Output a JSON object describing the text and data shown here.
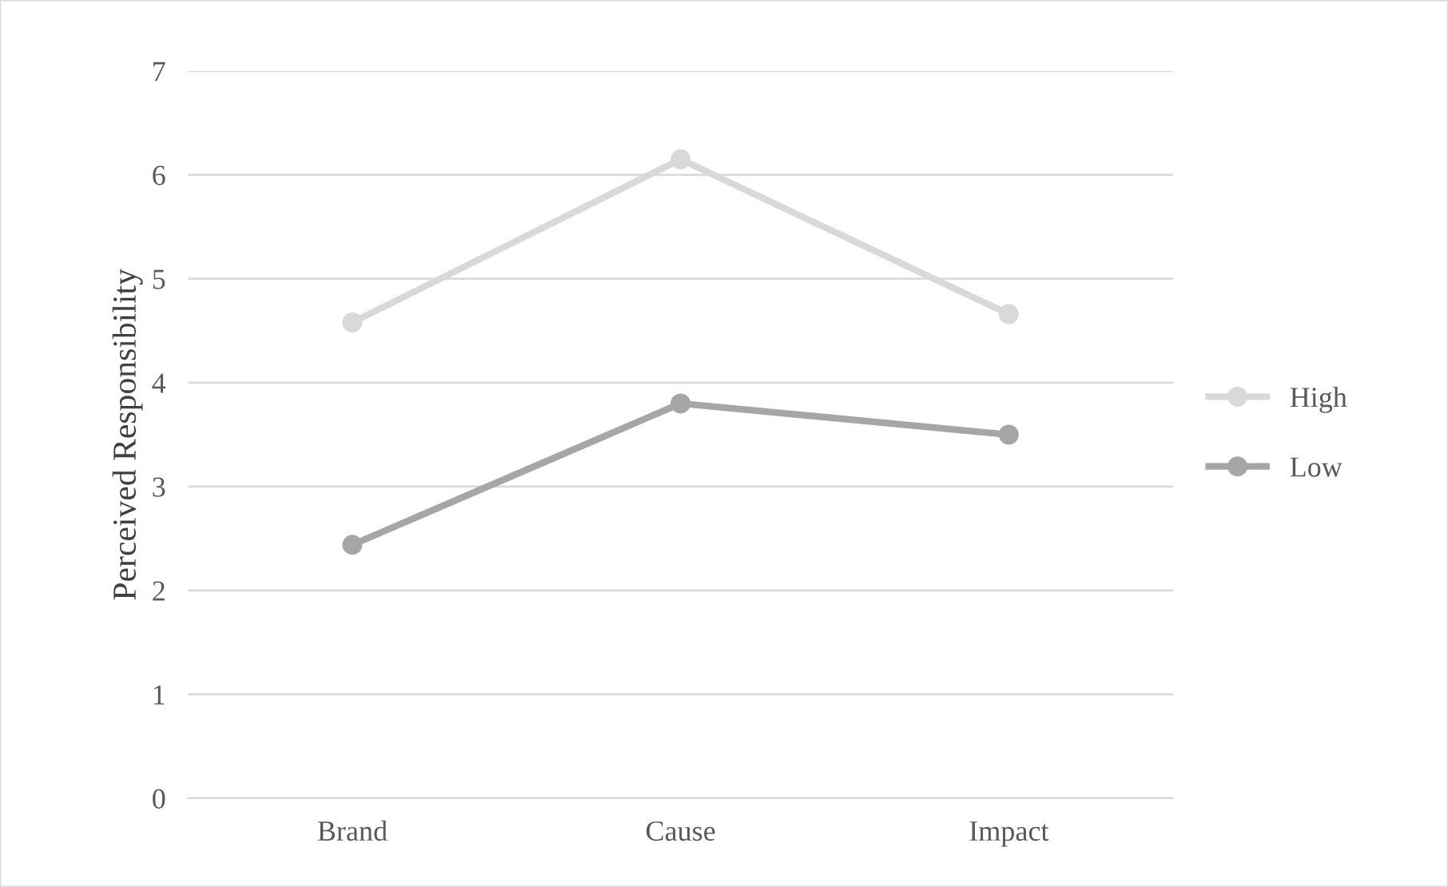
{
  "chart_data": {
    "type": "line",
    "ylabel": "Perceived Responsibility",
    "categories": [
      "Brand",
      "Cause",
      "Impact"
    ],
    "series": [
      {
        "name": "High",
        "color": "#d9d9d9",
        "values": [
          4.58,
          6.15,
          4.66
        ]
      },
      {
        "name": "Low",
        "color": "#a6a6a6",
        "values": [
          2.44,
          3.8,
          3.5
        ]
      }
    ],
    "ylim": [
      0,
      7
    ],
    "yticks": [
      0,
      1,
      2,
      3,
      4,
      5,
      6,
      7
    ],
    "grid": "y",
    "legend": "right",
    "marker": "circle",
    "line_style": "solid"
  }
}
